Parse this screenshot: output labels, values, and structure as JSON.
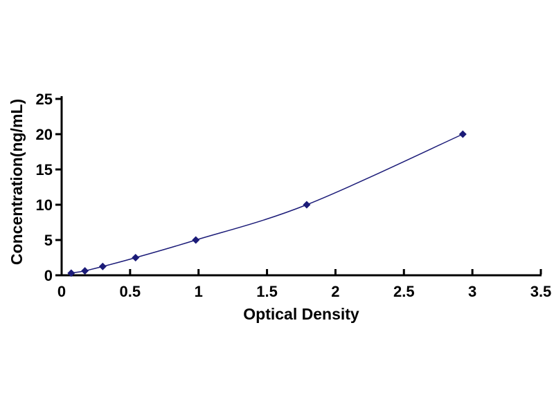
{
  "chart_data": {
    "type": "line",
    "title": "",
    "xlabel": "Optical Density",
    "ylabel": "Concentration(ng/mL)",
    "x": [
      0.07,
      0.17,
      0.3,
      0.54,
      0.98,
      1.79,
      2.93
    ],
    "y": [
      0.31,
      0.63,
      1.25,
      2.5,
      5,
      10,
      20
    ],
    "xlim": [
      0,
      3.5
    ],
    "ylim": [
      0,
      25
    ],
    "xticks": [
      0,
      0.5,
      1,
      1.5,
      2,
      2.5,
      3,
      3.5
    ],
    "xtick_labels": [
      "0",
      "0.5",
      "1",
      "1.5",
      "2",
      "2.5",
      "3",
      "3.5"
    ],
    "yticks": [
      0,
      5,
      10,
      15,
      20,
      25
    ],
    "ytick_labels": [
      "0",
      "5",
      "10",
      "15",
      "20",
      "25"
    ],
    "grid": false,
    "legend": "none",
    "marker": "diamond",
    "line_color": "#1b1b78",
    "marker_color": "#1b1b78",
    "axis_color": "#000000",
    "text_color": "#000000",
    "background_color": "#ffffff"
  }
}
